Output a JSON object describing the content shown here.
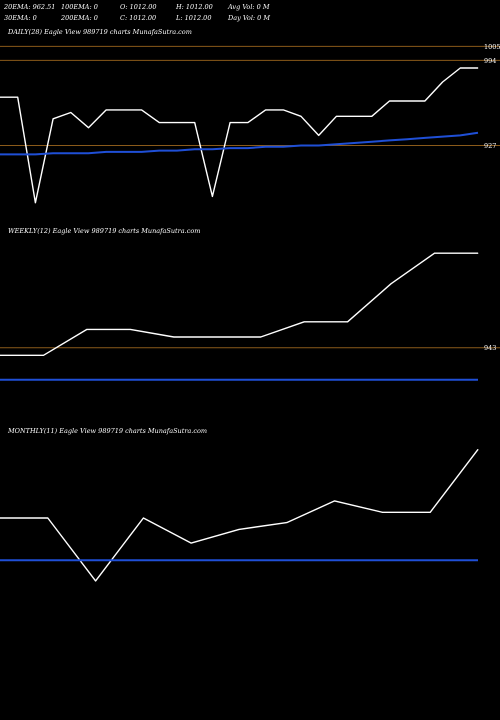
{
  "header": {
    "row1": [
      {
        "id": "ema20",
        "text": "20EMA: 962.51"
      },
      {
        "id": "ema100",
        "text": "100EMA: 0"
      },
      {
        "id": "open",
        "text": "O: 1012.00"
      },
      {
        "id": "high",
        "text": "H: 1012.00"
      },
      {
        "id": "avgvol",
        "text": "Avg Vol: 0  M"
      }
    ],
    "row2": [
      {
        "id": "ema30",
        "text": "30EMA: 0"
      },
      {
        "id": "ema200",
        "text": "200EMA: 0"
      },
      {
        "id": "close",
        "text": "C: 1012.00"
      },
      {
        "id": "low",
        "text": "L: 1012.00"
      },
      {
        "id": "dayvol",
        "text": "Day Vol: 0  M"
      }
    ]
  },
  "colors": {
    "background": "#000000",
    "price_line": "#ffffff",
    "ema_line": "#1f4fd6",
    "level_line": "#8a5a1a",
    "text": "#ffffff"
  },
  "chart_data": [
    {
      "type": "line",
      "title": "DAILY(28) Eagle  View  989719 charts MunafaSutra.com",
      "price_levels": [
        994,
        927,
        1005
      ],
      "series": [
        {
          "kind": "price",
          "values": [
            965,
            965,
            882,
            948,
            953,
            941,
            955,
            955,
            955,
            945,
            945,
            945,
            887,
            945,
            945,
            955,
            955,
            950,
            935,
            950,
            950,
            950,
            962,
            962,
            962,
            977,
            988,
            988
          ]
        },
        {
          "kind": "ema",
          "values": [
            920,
            920,
            920,
            921,
            921,
            921,
            922,
            922,
            922,
            923,
            923,
            924,
            924,
            925,
            925,
            926,
            926,
            927,
            927,
            928,
            929,
            930,
            931,
            932,
            933,
            934,
            935,
            937
          ]
        }
      ],
      "ylim": [
        870,
        1010
      ]
    },
    {
      "type": "line",
      "title": "WEEKLY(12) Eagle  View  989719 charts MunafaSutra.com",
      "price_levels": [
        943
      ],
      "series": [
        {
          "kind": "price",
          "values": [
            938,
            938,
            955,
            955,
            950,
            950,
            950,
            960,
            960,
            985,
            1005,
            1005
          ]
        },
        {
          "kind": "ema",
          "values": [
            922,
            922,
            922,
            922,
            922,
            922,
            922,
            922,
            922,
            922,
            922,
            922
          ]
        }
      ],
      "ylim": [
        910,
        1015
      ]
    },
    {
      "type": "line",
      "title": "MONTHLY(11) Eagle  View  989719 charts MunafaSutra.com",
      "price_levels": [],
      "series": [
        {
          "kind": "price",
          "values": [
            940,
            940,
            885,
            940,
            918,
            930,
            936,
            955,
            945,
            945,
            1000
          ]
        },
        {
          "kind": "ema",
          "values": [
            903,
            903,
            903,
            903,
            903,
            903,
            903,
            903,
            903,
            903,
            903
          ]
        }
      ],
      "ylim": [
        870,
        1010
      ]
    }
  ]
}
